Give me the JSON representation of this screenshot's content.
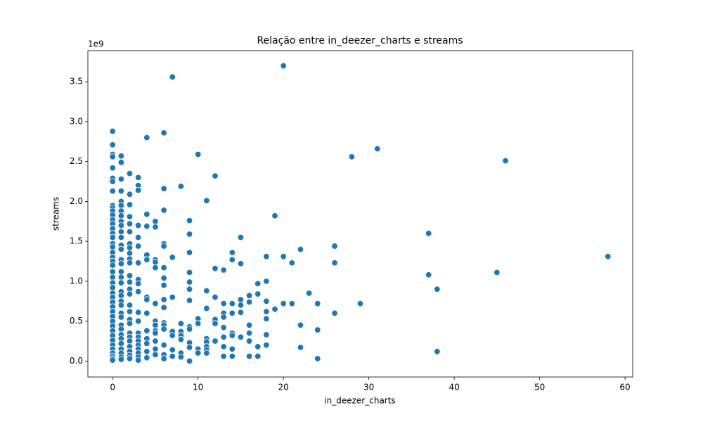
{
  "chart_data": {
    "type": "scatter",
    "title": "Relação entre in_deezer_charts e streams",
    "x_label": "in_deezer_charts",
    "y_label": "streams",
    "y_offset_label": "1e9",
    "xlim": [
      -2.9,
      60.9
    ],
    "ylim": [
      -0.2,
      3.89
    ],
    "xticks": [
      0,
      10,
      20,
      30,
      40,
      50,
      60
    ],
    "yticks": [
      {
        "value": 0,
        "label": "0.0"
      },
      0.5,
      {
        "value": 1,
        "label": "1.0"
      },
      1.5,
      {
        "value": 2,
        "label": "2.0"
      },
      2.5,
      {
        "value": 3,
        "label": "3.0"
      },
      3.5
    ],
    "grid": false,
    "series": [
      {
        "name": "streams",
        "color": "#1f77b4",
        "x": [
          0,
          0,
          0,
          0,
          0,
          0,
          0,
          0,
          0,
          0,
          0,
          0,
          0,
          0,
          0,
          0,
          0,
          0,
          0,
          0,
          0,
          0,
          0,
          0,
          0,
          0,
          0,
          0,
          0,
          0,
          0,
          0,
          0,
          0,
          0,
          0,
          0,
          0,
          0,
          0,
          0,
          0,
          0,
          0,
          1,
          1,
          1,
          1,
          1,
          1,
          1,
          1,
          1,
          1,
          1,
          1,
          1,
          1,
          1,
          1,
          1,
          1,
          1,
          1,
          1,
          1,
          1,
          1,
          1,
          1,
          1,
          1,
          1,
          1,
          1,
          1,
          1,
          1,
          2,
          2,
          2,
          2,
          2,
          2,
          2,
          2,
          2,
          2,
          2,
          2,
          2,
          2,
          2,
          2,
          2,
          2,
          2,
          2,
          2,
          2,
          2,
          2,
          2,
          2,
          3,
          3,
          3,
          3,
          3,
          3,
          3,
          3,
          3,
          3,
          3,
          3,
          3,
          3,
          3,
          3,
          3,
          3,
          3,
          3,
          4,
          4,
          4,
          4,
          4,
          4,
          4,
          4,
          4,
          4,
          4,
          4,
          4,
          5,
          5,
          5,
          5,
          5,
          5,
          5,
          5,
          5,
          5,
          5,
          5,
          5,
          6,
          6,
          6,
          6,
          6,
          6,
          6,
          6,
          6,
          6,
          6,
          6,
          6,
          6,
          6,
          6,
          7,
          7,
          7,
          7,
          7,
          7,
          7,
          8,
          8,
          8,
          8,
          8,
          8,
          8,
          9,
          9,
          9,
          9,
          9,
          9,
          9,
          9,
          9,
          9,
          9,
          9,
          10,
          10,
          10,
          10,
          10,
          11,
          11,
          11,
          11,
          11,
          11,
          11,
          11,
          12,
          12,
          12,
          12,
          12,
          12,
          13,
          13,
          13,
          13,
          13,
          13,
          13,
          13,
          14,
          14,
          14,
          14,
          14,
          14,
          14,
          14,
          15,
          15,
          15,
          15,
          15,
          15,
          16,
          16,
          16,
          16,
          16,
          16,
          17,
          17,
          17,
          17,
          18,
          18,
          18,
          18,
          18,
          18,
          18,
          19,
          19,
          20,
          20,
          20,
          21,
          21,
          22,
          22,
          22,
          23,
          24,
          24,
          24,
          26,
          26,
          26,
          28,
          29,
          31,
          37,
          37,
          38,
          38,
          45,
          46,
          58
        ],
        "values": [
          2.88,
          2.71,
          2.59,
          2.56,
          2.42,
          2.29,
          2.25,
          2.13,
          1.95,
          1.92,
          1.88,
          1.83,
          1.77,
          1.72,
          1.66,
          1.6,
          1.55,
          1.47,
          1.43,
          1.36,
          1.3,
          1.25,
          1.2,
          1.12,
          1.05,
          0.98,
          0.92,
          0.85,
          0.8,
          0.74,
          0.68,
          0.62,
          0.56,
          0.5,
          0.44,
          0.38,
          0.32,
          0.26,
          0.2,
          0.15,
          0.1,
          0.06,
          0.03,
          0.01,
          2.57,
          2.49,
          2.28,
          2.13,
          2.0,
          1.95,
          1.88,
          1.82,
          1.75,
          1.7,
          1.62,
          1.55,
          1.45,
          1.4,
          1.27,
          1.22,
          1.12,
          1.05,
          0.98,
          0.87,
          0.82,
          0.75,
          0.7,
          0.6,
          0.55,
          0.45,
          0.4,
          0.33,
          0.28,
          0.22,
          0.15,
          0.1,
          0.05,
          0.02,
          2.35,
          2.09,
          1.96,
          1.81,
          1.72,
          1.62,
          1.47,
          1.42,
          1.35,
          1.28,
          1.23,
          1.07,
          0.99,
          0.9,
          0.84,
          0.7,
          0.62,
          0.52,
          0.47,
          0.35,
          0.3,
          0.25,
          0.18,
          0.12,
          0.07,
          0.03,
          2.3,
          2.2,
          2.14,
          1.7,
          1.55,
          1.44,
          1.23,
          1.02,
          0.97,
          0.87,
          0.61,
          0.5,
          0.35,
          0.3,
          0.25,
          0.2,
          0.15,
          0.1,
          0.05,
          0.01,
          2.8,
          1.84,
          1.69,
          1.33,
          1.27,
          0.8,
          0.77,
          0.6,
          0.38,
          0.28,
          0.22,
          0.12,
          0.04,
          1.75,
          1.68,
          1.27,
          1.24,
          1.17,
          0.72,
          0.5,
          0.45,
          0.38,
          0.35,
          0.25,
          0.15,
          0.08,
          2.86,
          2.16,
          1.89,
          1.47,
          1.44,
          1.17,
          1.04,
          0.95,
          0.77,
          0.67,
          0.48,
          0.45,
          0.4,
          0.2,
          0.08,
          0.03,
          3.56,
          1.3,
          0.8,
          0.37,
          0.32,
          0.14,
          0.06,
          2.19,
          0.47,
          0.37,
          0.32,
          0.27,
          0.1,
          0.05,
          1.76,
          1.59,
          1.36,
          1.11,
          0.99,
          0.9,
          0.76,
          0.43,
          0.4,
          0.23,
          0.17,
          0.0,
          2.59,
          0.53,
          0.47,
          0.15,
          0.1,
          2.01,
          0.88,
          0.66,
          0.28,
          0.24,
          0.18,
          0.14,
          0.1,
          2.32,
          1.16,
          0.8,
          0.52,
          0.47,
          0.25,
          1.14,
          0.72,
          0.6,
          0.55,
          0.42,
          0.3,
          0.18,
          0.06,
          1.36,
          1.27,
          0.72,
          0.6,
          0.35,
          0.32,
          0.15,
          0.06,
          1.55,
          1.22,
          0.77,
          0.7,
          0.61,
          0.3,
          0.82,
          0.74,
          0.45,
          0.35,
          0.25,
          0.06,
          0.97,
          0.84,
          0.18,
          0.06,
          1.31,
          1.0,
          0.75,
          0.62,
          0.53,
          0.33,
          0.2,
          1.82,
          0.65,
          3.7,
          1.31,
          0.72,
          1.23,
          0.72,
          1.4,
          0.45,
          0.17,
          0.85,
          0.72,
          0.39,
          0.03,
          1.44,
          1.23,
          0.6,
          2.56,
          0.72,
          2.66,
          1.6,
          1.08,
          0.9,
          0.12,
          1.11,
          2.51,
          1.31
        ]
      }
    ]
  }
}
